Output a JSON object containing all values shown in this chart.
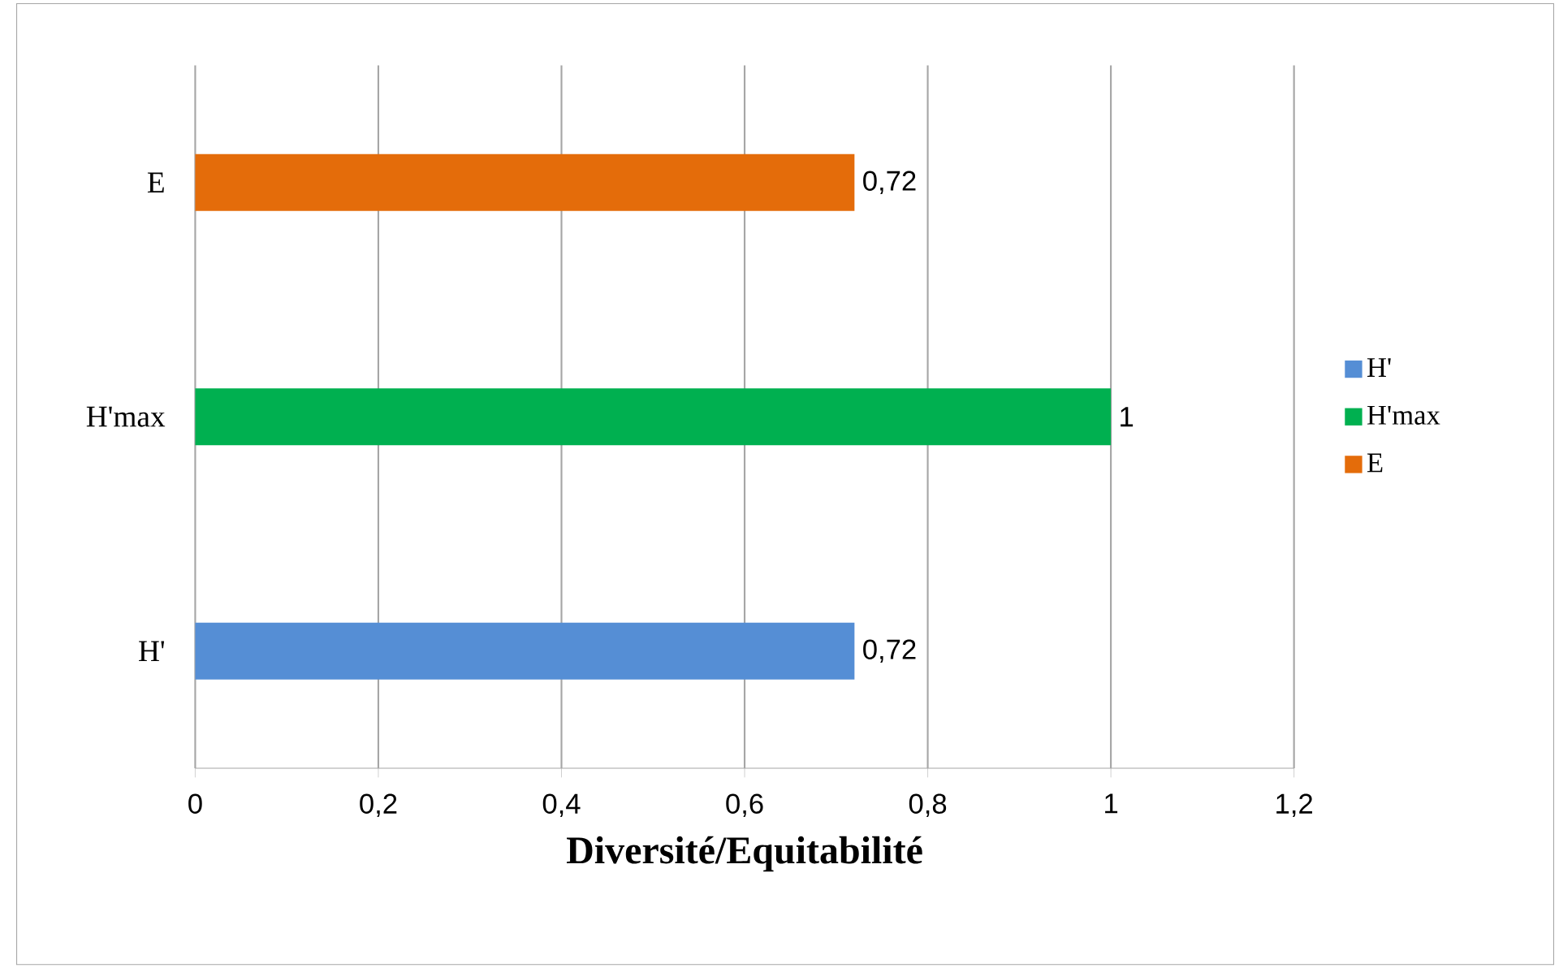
{
  "chart_data": {
    "type": "bar",
    "orientation": "horizontal",
    "xlabel": "Diversité/Equitabilité",
    "categories": [
      "E",
      "H'max",
      "H'"
    ],
    "series": [
      {
        "name": "H'",
        "color": "#558ed5",
        "values": [
          null,
          null,
          0.72
        ],
        "value_labels": [
          null,
          null,
          "0,72"
        ]
      },
      {
        "name": "H'max",
        "color": "#00b050",
        "values": [
          null,
          1,
          null
        ],
        "value_labels": [
          null,
          "1",
          null
        ]
      },
      {
        "name": "E",
        "color": "#e46c0a",
        "values": [
          0.72,
          null,
          null
        ],
        "value_labels": [
          "0,72",
          null,
          null
        ]
      }
    ],
    "xlim": [
      0,
      1.2
    ],
    "xticks": [
      0,
      {
        "value": 0.2,
        "label": "0,2"
      },
      {
        "value": 0.4,
        "label": "0,4"
      },
      {
        "value": 0.6,
        "label": "0,6"
      },
      {
        "value": 0.8,
        "label": "0,8"
      },
      1,
      {
        "value": 1.2,
        "label": "1,2"
      }
    ],
    "grid": "x",
    "legend": "right"
  }
}
